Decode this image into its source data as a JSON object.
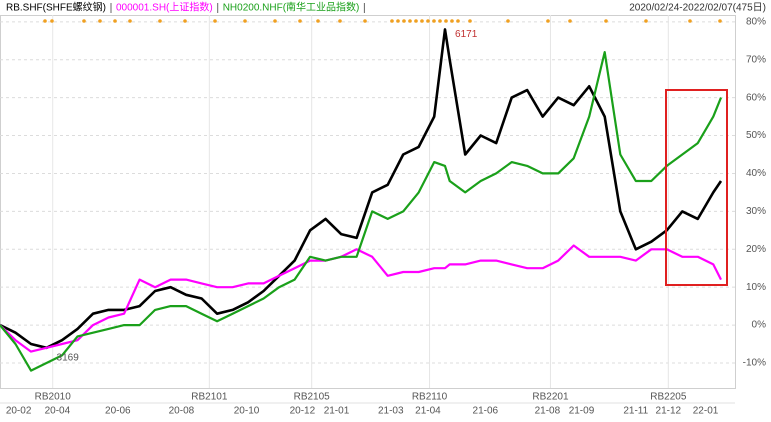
{
  "chart_data": {
    "type": "line",
    "range_label": "2020/02/24-2022/02/07(475日)",
    "x": [
      0,
      10,
      20,
      30,
      40,
      50,
      60,
      70,
      80,
      90,
      100,
      110,
      120,
      130,
      140,
      150,
      160,
      170,
      180,
      190,
      200,
      210,
      220,
      230,
      240,
      250,
      260,
      270,
      280,
      287,
      290,
      300,
      310,
      320,
      330,
      340,
      350,
      360,
      370,
      380,
      390,
      400,
      410,
      420,
      430,
      440,
      450,
      460,
      465
    ],
    "xlim": [
      0,
      474
    ],
    "xticks": [
      {
        "value": 12,
        "label": "20-02"
      },
      {
        "value": 37,
        "label": "20-04"
      },
      {
        "value": 76,
        "label": "20-06"
      },
      {
        "value": 117,
        "label": "20-08"
      },
      {
        "value": 159,
        "label": "20-10"
      },
      {
        "value": 195,
        "label": "20-12"
      },
      {
        "value": 217,
        "label": "21-01"
      },
      {
        "value": 252,
        "label": "21-03"
      },
      {
        "value": 276,
        "label": "21-04"
      },
      {
        "value": 313,
        "label": "21-06"
      },
      {
        "value": 353,
        "label": "21-08"
      },
      {
        "value": 375,
        "label": "21-09"
      },
      {
        "value": 410,
        "label": "21-11"
      },
      {
        "value": 431,
        "label": "21-12"
      },
      {
        "value": 455,
        "label": "22-01"
      }
    ],
    "contract_ticks": [
      {
        "value": 34,
        "label": "RB2010"
      },
      {
        "value": 135,
        "label": "RB2101"
      },
      {
        "value": 201,
        "label": "RB2105"
      },
      {
        "value": 277,
        "label": "RB2110"
      },
      {
        "value": 355,
        "label": "RB2201"
      },
      {
        "value": 431,
        "label": "RB2205"
      }
    ],
    "ylim": [
      -16.6,
      81.8
    ],
    "yticks": [
      {
        "value": 80,
        "label": "80%"
      },
      {
        "value": 70,
        "label": "70%"
      },
      {
        "value": 60,
        "label": "60%"
      },
      {
        "value": 50,
        "label": "50%"
      },
      {
        "value": 40,
        "label": "40%"
      },
      {
        "value": 30,
        "label": "30%"
      },
      {
        "value": 20,
        "label": "20%"
      },
      {
        "value": 10,
        "label": "10%"
      },
      {
        "value": 0,
        "label": "0%"
      },
      {
        "value": -10,
        "label": "-10%"
      }
    ],
    "grid": true,
    "series": [
      {
        "name": "RB.SHF(SHFE螺纹钢)",
        "color": "#000000",
        "values": [
          0,
          -2,
          -5,
          -6,
          -4,
          -1,
          3,
          4,
          4,
          5,
          9,
          10,
          8,
          7,
          3,
          4,
          6,
          9,
          13,
          17,
          25,
          28,
          24,
          23,
          35,
          37,
          45,
          47,
          55,
          78,
          70,
          45,
          50,
          48,
          60,
          62,
          55,
          60,
          58,
          63,
          55,
          30,
          20,
          22,
          25,
          30,
          28,
          35,
          38
        ]
      },
      {
        "name": "000001.SH(上证指数)",
        "color": "#ff00ff",
        "values": [
          0,
          -4,
          -7,
          -6,
          -5,
          -4,
          0,
          2,
          3,
          12,
          10,
          12,
          12,
          11,
          10,
          10,
          11,
          11,
          13,
          15,
          17,
          17,
          18,
          20,
          18,
          13,
          14,
          14,
          15,
          15,
          16,
          16,
          17,
          17,
          16,
          15,
          15,
          17,
          21,
          18,
          18,
          18,
          17,
          20,
          20,
          18,
          18,
          16,
          12
        ]
      },
      {
        "name": "NH0200.NHF(南华工业品指数)",
        "color": "#1aa01a",
        "values": [
          0,
          -5,
          -12,
          -10,
          -8,
          -3,
          -2,
          -1,
          0,
          0,
          4,
          5,
          5,
          3,
          1,
          3,
          5,
          7,
          10,
          12,
          18,
          17,
          18,
          18,
          30,
          28,
          30,
          35,
          43,
          42,
          38,
          35,
          38,
          40,
          43,
          42,
          40,
          40,
          44,
          55,
          72,
          45,
          38,
          38,
          42,
          45,
          48,
          55,
          60
        ]
      }
    ],
    "annotations": [
      {
        "text": "6171",
        "x": 287,
        "y": 78
      },
      {
        "text": "3169",
        "x": 30,
        "y": -6
      }
    ]
  }
}
